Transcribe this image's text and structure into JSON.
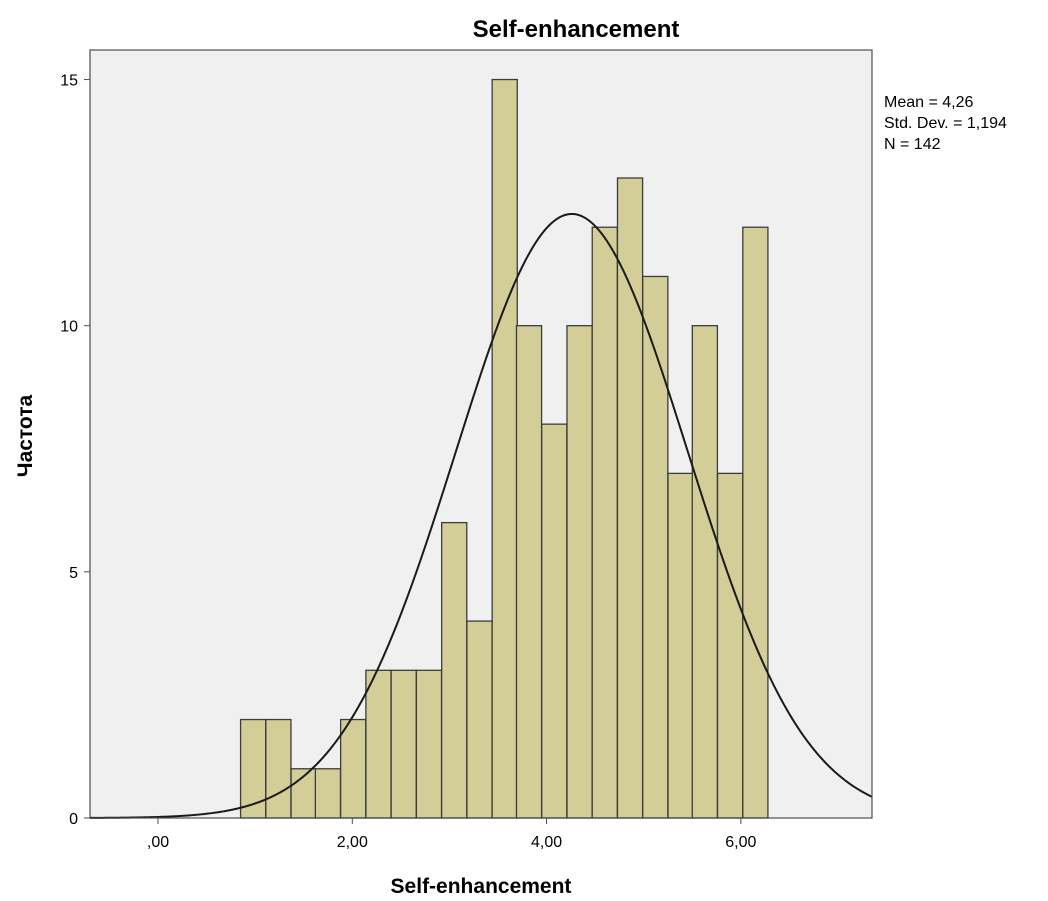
{
  "chart_data": {
    "type": "bar",
    "title": "Self-enhancement",
    "xlabel": "Self-enhancement",
    "ylabel": "Частота",
    "xlim": [
      -0.7,
      7.35
    ],
    "ylim": [
      0,
      15.6
    ],
    "x_ticks": [
      {
        "value": 0,
        "label": ",00"
      },
      {
        "value": 2,
        "label": "2,00"
      },
      {
        "value": 4,
        "label": "4,00"
      },
      {
        "value": 6,
        "label": "6,00"
      }
    ],
    "y_ticks": [
      {
        "value": 0,
        "label": "0"
      },
      {
        "value": 5,
        "label": "5"
      },
      {
        "value": 10,
        "label": "10"
      },
      {
        "value": 15,
        "label": "15"
      }
    ],
    "bin_width": 0.2586,
    "bins": [
      {
        "start": 0.85,
        "count": 2
      },
      {
        "start": 1.11,
        "count": 2
      },
      {
        "start": 1.37,
        "count": 1
      },
      {
        "start": 1.62,
        "count": 1
      },
      {
        "start": 1.88,
        "count": 2
      },
      {
        "start": 2.14,
        "count": 3
      },
      {
        "start": 2.4,
        "count": 3
      },
      {
        "start": 2.66,
        "count": 3
      },
      {
        "start": 2.92,
        "count": 6
      },
      {
        "start": 3.18,
        "count": 4
      },
      {
        "start": 3.44,
        "count": 15
      },
      {
        "start": 3.69,
        "count": 10
      },
      {
        "start": 3.95,
        "count": 8
      },
      {
        "start": 4.21,
        "count": 10
      },
      {
        "start": 4.47,
        "count": 12
      },
      {
        "start": 4.73,
        "count": 13
      },
      {
        "start": 4.99,
        "count": 11
      },
      {
        "start": 5.25,
        "count": 7
      },
      {
        "start": 5.5,
        "count": 10
      },
      {
        "start": 5.76,
        "count": 7
      },
      {
        "start": 6.02,
        "count": 12
      }
    ],
    "normal_curve": {
      "mean": 4.26,
      "std_dev": 1.194,
      "n": 142
    },
    "stats": {
      "mean": "Mean = 4,26",
      "std_dev": "Std. Dev. = 1,194",
      "n": "N = 142"
    },
    "colors": {
      "plot_background": "#f0f0f0",
      "bar_fill": "#d3ce97",
      "bar_stroke": "#3c3c3c",
      "curve": "#1a1a1a",
      "frame": "#4d4d4d"
    },
    "grid": false,
    "legend": "none"
  }
}
